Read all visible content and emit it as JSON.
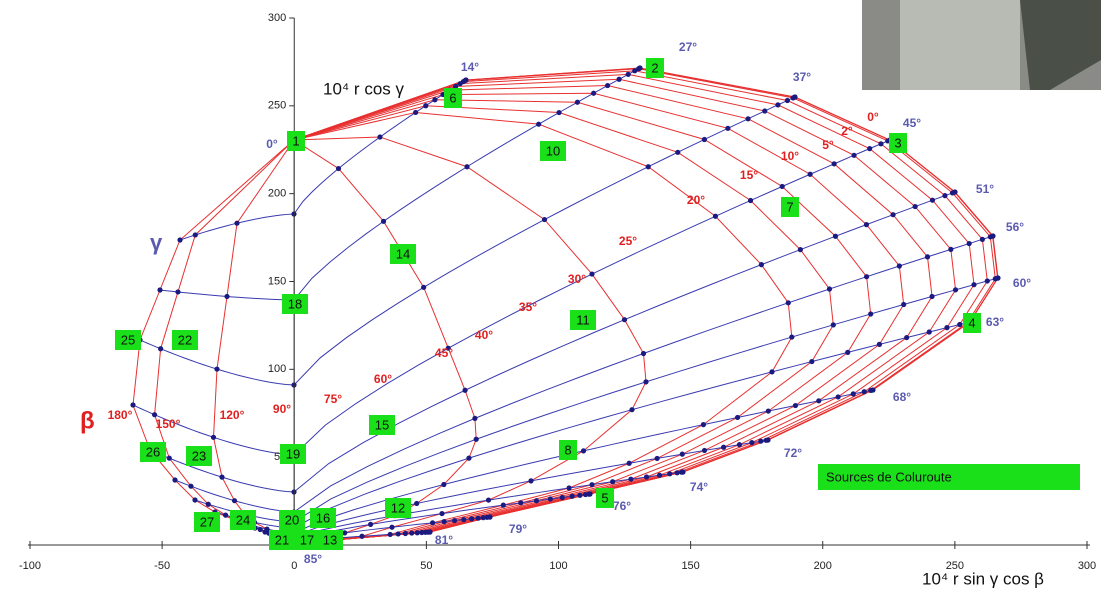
{
  "axes": {
    "xlim": [
      -100,
      300
    ],
    "ylim": [
      0,
      300
    ],
    "xticks": [
      -100,
      -50,
      0,
      50,
      100,
      150,
      200,
      250,
      300
    ],
    "yticks": [
      50,
      100,
      150,
      200,
      250,
      300
    ]
  },
  "x_label": "10⁴ r sin γ cos β",
  "y_label": "10⁴ r cos γ",
  "gamma_symbol": "γ",
  "beta_symbol": "β",
  "gamma_labels": [
    "0°",
    "14°",
    "27°",
    "37°",
    "45°",
    "51°",
    "56°",
    "60°",
    "63°",
    "68°",
    "72°",
    "74°",
    "76°",
    "79°",
    "81°",
    "85°"
  ],
  "beta_labels": [
    "0°",
    "2°",
    "5°",
    "10°",
    "15°",
    "20°",
    "25°",
    "30°",
    "35°",
    "40°",
    "45°",
    "60°",
    "75°",
    "90°",
    "120°",
    "150°",
    "180°"
  ],
  "sources": [
    "1",
    "2",
    "3",
    "4",
    "5",
    "6",
    "7",
    "8",
    "10",
    "11",
    "12",
    "13",
    "14",
    "15",
    "16",
    "17",
    "18",
    "19",
    "20",
    "21",
    "22",
    "23",
    "24",
    "25",
    "26",
    "27"
  ],
  "legend": "Sources de Coluroute"
}
